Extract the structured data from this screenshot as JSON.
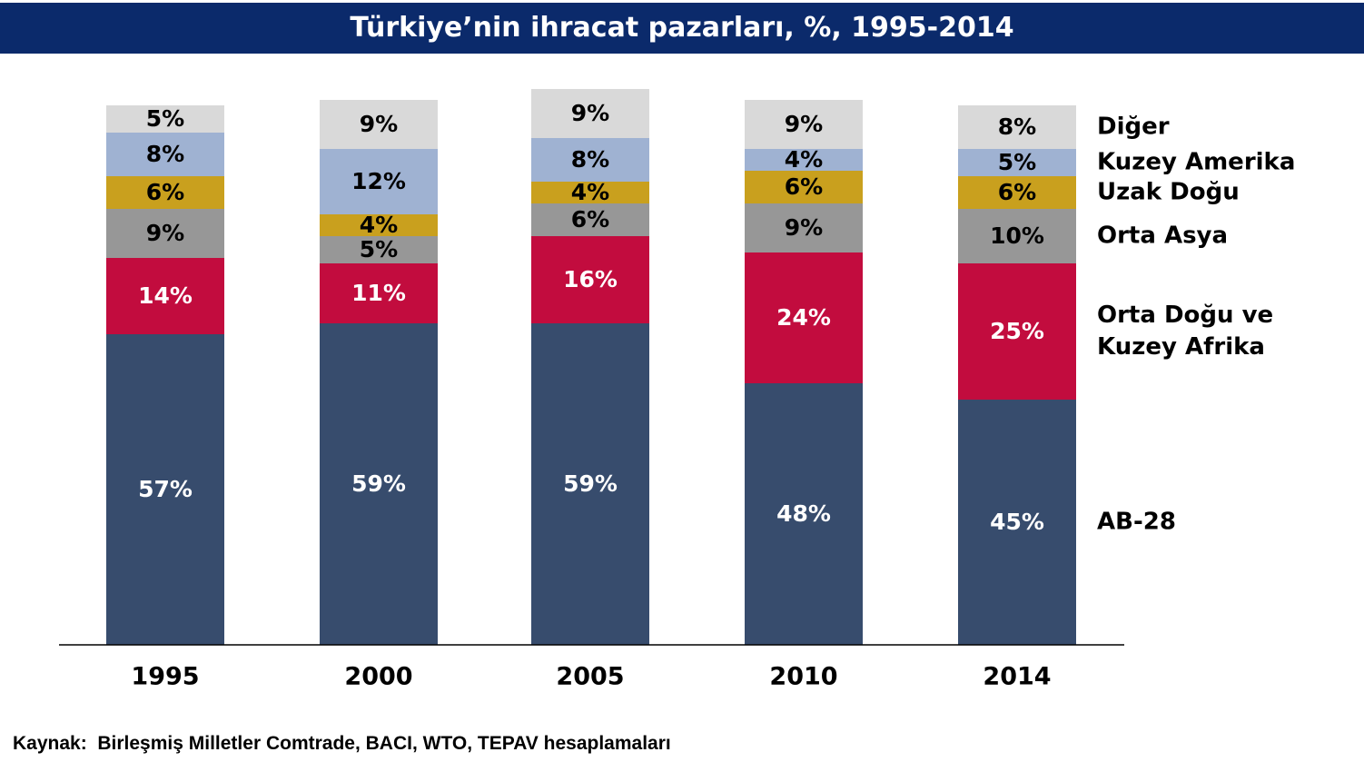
{
  "chart_data": {
    "type": "stacked_bar",
    "title": "Türkiye’nin ihracat pazarları, %, 1995-2014",
    "categories": [
      "1995",
      "2000",
      "2005",
      "2010",
      "2014"
    ],
    "ylim": [
      0,
      100
    ],
    "series": [
      {
        "name": "AB-28",
        "color": "#374c6d",
        "values": [
          57,
          59,
          59,
          48,
          45
        ],
        "value_labels": [
          "57%",
          "59%",
          "59%",
          "48%",
          "45%"
        ]
      },
      {
        "name": "Orta Doğu ve Kuzey Afrika",
        "color": "#c20c3e",
        "values": [
          14,
          11,
          16,
          24,
          25
        ],
        "value_labels": [
          "14%",
          "11%",
          "16%",
          "24%",
          "25%"
        ]
      },
      {
        "name": "Orta Asya",
        "color": "#979797",
        "values": [
          9,
          5,
          6,
          9,
          10
        ],
        "value_labels": [
          "9%",
          "5%",
          "6%",
          "9%",
          "10%"
        ]
      },
      {
        "name": "Uzak Doğu",
        "color": "#c9a01e",
        "values": [
          6,
          4,
          4,
          6,
          6
        ],
        "value_labels": [
          "6%",
          "4%",
          "4%",
          "6%",
          "6%"
        ]
      },
      {
        "name": "Kuzey Amerika",
        "color": "#9fb2d2",
        "values": [
          8,
          12,
          8,
          4,
          5
        ],
        "value_labels": [
          "8%",
          "12%",
          "8%",
          "4%",
          "5%"
        ]
      },
      {
        "name": "Diğer",
        "color": "#d9d9d9",
        "values": [
          5,
          9,
          9,
          9,
          8
        ],
        "value_labels": [
          "5%",
          "9%",
          "9%",
          "9%",
          "8%"
        ]
      }
    ],
    "source": "Kaynak:  Birleşmiş Milletler Comtrade, BACI, WTO, TEPAV hesaplamaları"
  }
}
